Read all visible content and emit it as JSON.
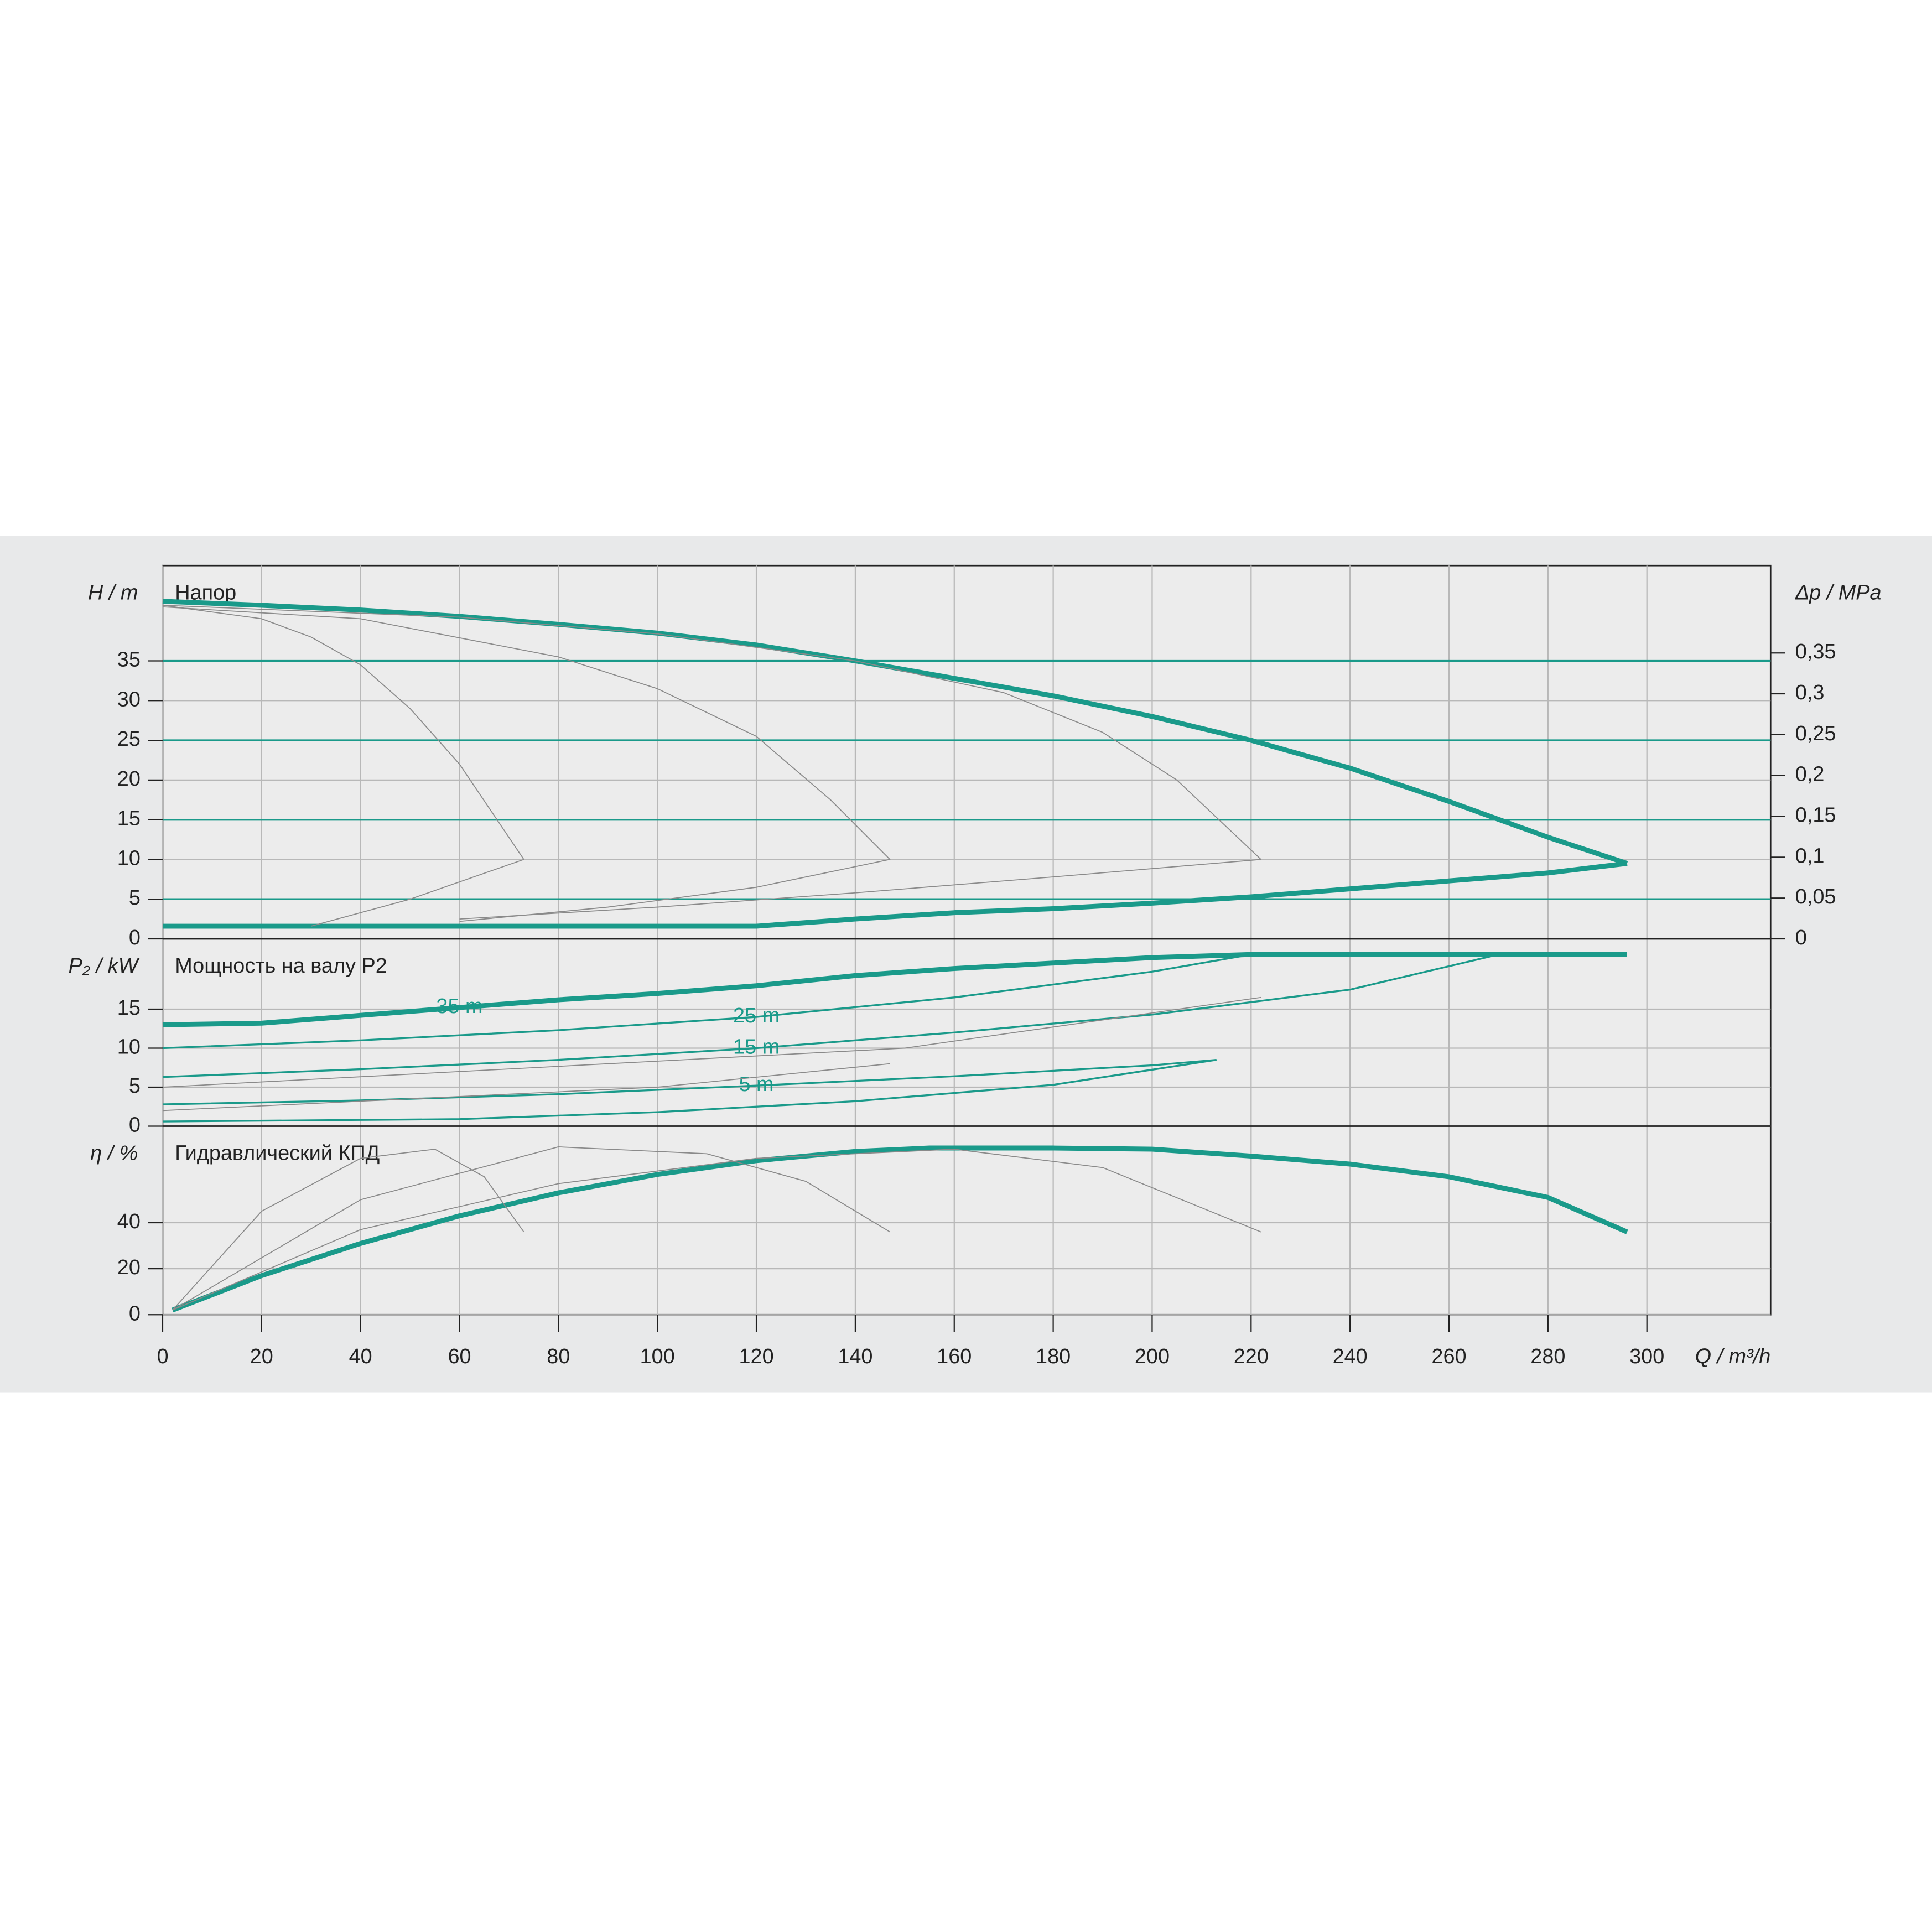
{
  "chart_data": [
    {
      "type": "line",
      "label": "Напор",
      "ylabel": "H / m",
      "y2label": "Δp / MPa",
      "xlim": [
        0,
        325
      ],
      "ylim": [
        0,
        47
      ],
      "yticks": [
        0,
        5,
        10,
        15,
        20,
        25,
        30,
        35
      ],
      "y2lim": [
        0,
        0.457
      ],
      "y2ticks": [
        0,
        {
          "value": 0.05,
          "label": "0,05"
        },
        {
          "value": 0.1,
          "label": "0,1"
        },
        {
          "value": 0.15,
          "label": "0,15"
        },
        {
          "value": 0.2,
          "label": "0,2"
        },
        {
          "value": 0.25,
          "label": "0,25"
        },
        {
          "value": 0.3,
          "label": "0,3"
        },
        {
          "value": 0.35,
          "label": "0,35"
        }
      ],
      "grid": true,
      "series": [
        {
          "color": "#1a9a8a",
          "linewidth": 4,
          "x": [
            0,
            20,
            40,
            60,
            80,
            100,
            120,
            140,
            160,
            180,
            200,
            220,
            240,
            260,
            280,
            296
          ],
          "values": [
            42.5,
            42,
            41.4,
            40.6,
            39.6,
            38.5,
            37,
            35,
            32.8,
            30.6,
            28,
            25,
            21.5,
            17.3,
            12.8,
            9.5
          ]
        },
        {
          "color": "#1a9a8a",
          "linewidth": 4,
          "x": [
            0,
            120,
            140,
            160,
            180,
            200,
            220,
            240,
            260,
            280,
            296
          ],
          "values": [
            1.6,
            1.6,
            2.5,
            3.3,
            3.8,
            4.5,
            5.3,
            6.3,
            7.3,
            8.3,
            9.5
          ]
        },
        {
          "color": "#1a9a8a",
          "linewidth": 1.5,
          "x": [
            0,
            325
          ],
          "values": [
            35,
            35
          ]
        },
        {
          "color": "#1a9a8a",
          "linewidth": 1.5,
          "x": [
            0,
            325
          ],
          "values": [
            25,
            25
          ]
        },
        {
          "color": "#1a9a8a",
          "linewidth": 1.5,
          "x": [
            0,
            325
          ],
          "values": [
            15,
            15
          ]
        },
        {
          "color": "#1a9a8a",
          "linewidth": 1.5,
          "x": [
            0,
            325
          ],
          "values": [
            5,
            5
          ]
        },
        {
          "color": "#8a8a8a",
          "linewidth": 0.8,
          "x": [
            0,
            20,
            30,
            40,
            50,
            60,
            73,
            50,
            30
          ],
          "values": [
            42,
            40.3,
            38,
            34.5,
            29,
            22,
            10,
            5,
            1.6
          ]
        },
        {
          "color": "#8a8a8a",
          "linewidth": 0.8,
          "x": [
            0,
            40,
            80,
            100,
            120,
            135,
            147,
            120,
            90,
            60
          ],
          "values": [
            41.8,
            40.3,
            35.5,
            31.5,
            25.5,
            17.5,
            10,
            6.5,
            4,
            2.2
          ]
        },
        {
          "color": "#8a8a8a",
          "linewidth": 0.8,
          "x": [
            0,
            60,
            100,
            140,
            170,
            190,
            205,
            222,
            180,
            140,
            100,
            60
          ],
          "values": [
            42,
            40.5,
            38.4,
            35,
            31,
            26,
            20,
            10,
            7.8,
            5.8,
            4,
            2.5
          ]
        }
      ]
    },
    {
      "type": "line",
      "label": "Мощность на валу P2",
      "ylabel": "P₂ / kW",
      "xlim": [
        0,
        325
      ],
      "ylim": [
        0,
        24
      ],
      "yticks": [
        0,
        5,
        10,
        15
      ],
      "grid": true,
      "series": [
        {
          "name": "35 m",
          "color": "#1a9a8a",
          "linewidth": 4,
          "x": [
            0,
            20,
            40,
            60,
            80,
            100,
            120,
            140,
            160,
            180,
            200,
            220,
            296
          ],
          "values": [
            13,
            13.2,
            14.2,
            15.2,
            16.2,
            17,
            18,
            19.3,
            20.2,
            20.9,
            21.6,
            22,
            22
          ]
        },
        {
          "name": "25 m",
          "color": "#1a9a8a",
          "linewidth": 1.5,
          "x": [
            0,
            40,
            80,
            120,
            160,
            200,
            220
          ],
          "values": [
            10,
            11,
            12.3,
            14,
            16.5,
            19.8,
            22
          ]
        },
        {
          "name": "15 m",
          "color": "#1a9a8a",
          "linewidth": 1.5,
          "x": [
            0,
            40,
            80,
            120,
            160,
            200,
            240,
            270,
            296
          ],
          "values": [
            6.3,
            7.3,
            8.5,
            10,
            12,
            14.3,
            17.5,
            22,
            22
          ]
        },
        {
          "name": "5 m",
          "color": "#1a9a8a",
          "linewidth": 1.5,
          "x": [
            0,
            40,
            80,
            120,
            160,
            200,
            213
          ],
          "values": [
            2.8,
            3.3,
            4.1,
            5.2,
            6.4,
            7.8,
            8.5
          ]
        },
        {
          "color": "#1a9a8a",
          "linewidth": 1.5,
          "x": [
            0,
            60,
            100,
            140,
            180,
            213
          ],
          "values": [
            0.6,
            0.9,
            1.8,
            3.2,
            5.3,
            8.5
          ]
        },
        {
          "color": "#8a8a8a",
          "linewidth": 0.8,
          "x": [
            0,
            100,
            147
          ],
          "values": [
            2,
            5,
            8
          ]
        },
        {
          "color": "#8a8a8a",
          "linewidth": 0.8,
          "x": [
            0,
            150,
            222
          ],
          "values": [
            5,
            10,
            16.5
          ]
        }
      ]
    },
    {
      "type": "line",
      "label": "Гидравлический КПД",
      "ylabel": "η / %",
      "xlabel": "Q / m³/h",
      "xlim": [
        0,
        325
      ],
      "xticks": [
        0,
        20,
        40,
        60,
        80,
        100,
        120,
        140,
        160,
        180,
        200,
        220,
        240,
        260,
        280,
        300
      ],
      "ylim": [
        0,
        82
      ],
      "yticks": [
        0,
        20,
        40
      ],
      "grid": true,
      "series": [
        {
          "color": "#1a9a8a",
          "linewidth": 4,
          "x": [
            2,
            20,
            40,
            60,
            80,
            100,
            120,
            140,
            155,
            180,
            200,
            220,
            240,
            260,
            280,
            296
          ],
          "values": [
            2,
            17,
            31,
            43,
            53,
            61,
            67,
            71,
            72.5,
            72.5,
            72,
            69,
            65.5,
            60,
            51,
            36
          ]
        },
        {
          "color": "#8a8a8a",
          "linewidth": 0.8,
          "x": [
            2,
            20,
            40,
            55,
            65,
            73
          ],
          "values": [
            2,
            45,
            68,
            72,
            60,
            36
          ]
        },
        {
          "color": "#8a8a8a",
          "linewidth": 0.8,
          "x": [
            2,
            40,
            80,
            110,
            130,
            147
          ],
          "values": [
            2,
            50,
            73,
            70,
            58,
            36
          ]
        },
        {
          "color": "#8a8a8a",
          "linewidth": 0.8,
          "x": [
            2,
            40,
            80,
            120,
            160,
            190,
            222
          ],
          "values": [
            2,
            37,
            57,
            68,
            72,
            64,
            36
          ]
        }
      ]
    }
  ]
}
